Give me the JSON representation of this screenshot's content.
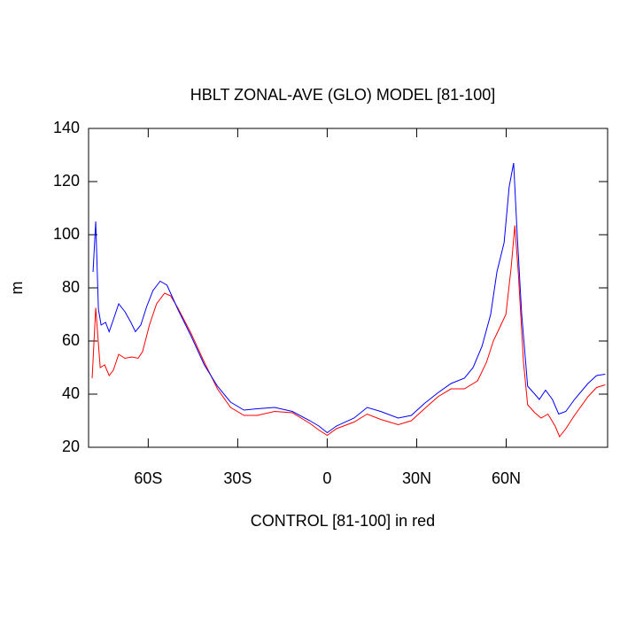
{
  "chart_data": {
    "type": "line",
    "title": "HBLT ZONAL-AVE (GLO) MODEL [81-100]",
    "y_label": "m",
    "x_label": "CONTROL [81-100] in red",
    "xlim": [
      -80,
      94
    ],
    "ylim": [
      20,
      140
    ],
    "xticks": [
      {
        "value": -60,
        "label": "60S"
      },
      {
        "value": -30,
        "label": "30S"
      },
      0,
      {
        "value": 30,
        "label": "30N"
      },
      {
        "value": 60,
        "label": "60N"
      }
    ],
    "yticks": [
      20,
      40,
      60,
      80,
      100,
      120,
      140
    ],
    "series": [
      {
        "color": "#0000ff",
        "x": [
          -78.5,
          -77.6,
          -76.7,
          -75.8,
          -74.3,
          -73.1,
          -71.7,
          -69.9,
          -67.8,
          -65.8,
          -64.3,
          -62.5,
          -60.5,
          -58.4,
          -56.0,
          -53.7,
          -50.1,
          -45.7,
          -41.2,
          -36.8,
          -32.4,
          -27.9,
          -23.5,
          -17.6,
          -11.7,
          -5.8,
          -2.8,
          0,
          3.1,
          9.0,
          13.4,
          17.9,
          23.8,
          28.2,
          32.6,
          37.1,
          41.5,
          46.0,
          48.9,
          51.9,
          54.8,
          56.9,
          59.3,
          61.0,
          62.5,
          63.7,
          65.2,
          67.2,
          69.6,
          71.1,
          73.2,
          75.5,
          77.6,
          80.0,
          82.9,
          87.4,
          90.3,
          93.2
        ],
        "values": [
          86,
          105,
          72,
          66,
          67,
          63.5,
          68,
          74,
          71,
          67,
          63.5,
          66,
          73,
          79,
          82.5,
          81,
          72,
          62,
          51,
          43,
          37,
          34,
          34.5,
          35,
          33.5,
          30,
          28,
          25.5,
          28,
          31,
          35,
          33.5,
          31,
          32,
          36.5,
          40.5,
          44,
          46,
          50,
          58,
          70,
          86,
          97,
          118,
          127,
          100,
          70,
          43,
          40,
          38,
          41.5,
          38,
          32.5,
          33.5,
          38,
          44,
          47,
          47.5
        ]
      },
      {
        "color": "#ff0000",
        "x": [
          -78.8,
          -77.6,
          -76.1,
          -74.6,
          -73.1,
          -71.7,
          -69.9,
          -67.8,
          -65.5,
          -63.4,
          -61.9,
          -59.6,
          -57.2,
          -54.5,
          -52.5,
          -50.1,
          -45.7,
          -41.2,
          -36.8,
          -32.4,
          -27.9,
          -23.5,
          -17.6,
          -11.7,
          -5.8,
          -2.8,
          0,
          3.1,
          9.0,
          13.4,
          17.9,
          23.8,
          28.2,
          32.6,
          37.1,
          41.5,
          46.0,
          50.4,
          53.4,
          55.7,
          57.8,
          59.9,
          61.7,
          62.9,
          64.1,
          65.8,
          67.2,
          69.6,
          71.7,
          74.0,
          76.4,
          77.9,
          80.0,
          82.9,
          87.4,
          90.3,
          93.2
        ],
        "values": [
          46,
          72.5,
          50,
          51,
          47,
          49,
          55,
          53.5,
          54,
          53.5,
          56,
          66,
          74,
          78,
          77,
          72.5,
          63,
          52,
          42,
          35,
          32,
          32,
          33.5,
          33,
          29,
          26.5,
          24.5,
          27,
          29.5,
          32.5,
          30.5,
          28.5,
          30,
          34.5,
          39,
          42,
          42,
          45,
          52,
          60,
          65,
          70,
          88,
          103.5,
          85,
          52,
          36,
          33,
          31,
          32.5,
          28,
          24,
          27,
          32,
          39,
          42.5,
          43.5
        ]
      }
    ]
  }
}
